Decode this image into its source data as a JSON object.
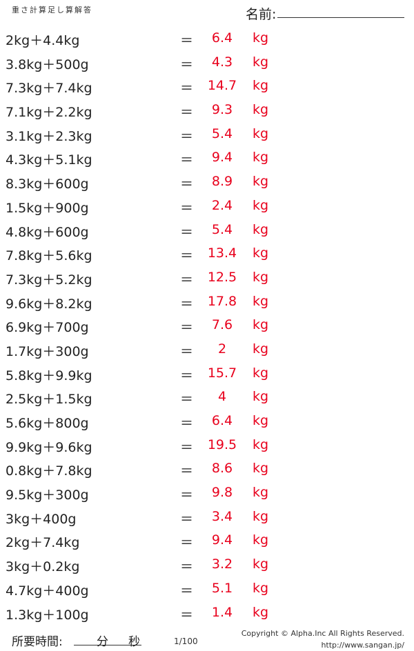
{
  "header": {
    "title": "重さ計算足し算解答",
    "name_label": "名前:"
  },
  "colors": {
    "answer": "#e8001c",
    "text": "#222222"
  },
  "equals": "＝",
  "rows": [
    {
      "problem": "2kg＋4.4kg",
      "answer": "6.4",
      "unit": "kg"
    },
    {
      "problem": "3.8kg＋500g",
      "answer": "4.3",
      "unit": "kg"
    },
    {
      "problem": "7.3kg＋7.4kg",
      "answer": "14.7",
      "unit": "kg"
    },
    {
      "problem": "7.1kg＋2.2kg",
      "answer": "9.3",
      "unit": "kg"
    },
    {
      "problem": "3.1kg＋2.3kg",
      "answer": "5.4",
      "unit": "kg"
    },
    {
      "problem": "4.3kg＋5.1kg",
      "answer": "9.4",
      "unit": "kg"
    },
    {
      "problem": "8.3kg＋600g",
      "answer": "8.9",
      "unit": "kg"
    },
    {
      "problem": "1.5kg＋900g",
      "answer": "2.4",
      "unit": "kg"
    },
    {
      "problem": "4.8kg＋600g",
      "answer": "5.4",
      "unit": "kg"
    },
    {
      "problem": "7.8kg＋5.6kg",
      "answer": "13.4",
      "unit": "kg"
    },
    {
      "problem": "7.3kg＋5.2kg",
      "answer": "12.5",
      "unit": "kg"
    },
    {
      "problem": "9.6kg＋8.2kg",
      "answer": "17.8",
      "unit": "kg"
    },
    {
      "problem": "6.9kg＋700g",
      "answer": "7.6",
      "unit": "kg"
    },
    {
      "problem": "1.7kg＋300g",
      "answer": "2",
      "unit": "kg"
    },
    {
      "problem": "5.8kg＋9.9kg",
      "answer": "15.7",
      "unit": "kg"
    },
    {
      "problem": "2.5kg＋1.5kg",
      "answer": "4",
      "unit": "kg"
    },
    {
      "problem": "5.6kg＋800g",
      "answer": "6.4",
      "unit": "kg"
    },
    {
      "problem": "9.9kg＋9.6kg",
      "answer": "19.5",
      "unit": "kg"
    },
    {
      "problem": "0.8kg＋7.8kg",
      "answer": "8.6",
      "unit": "kg"
    },
    {
      "problem": "9.5kg＋300g",
      "answer": "9.8",
      "unit": "kg"
    },
    {
      "problem": "3kg＋400g",
      "answer": "3.4",
      "unit": "kg"
    },
    {
      "problem": "2kg＋7.4kg",
      "answer": "9.4",
      "unit": "kg"
    },
    {
      "problem": "3kg＋0.2kg",
      "answer": "3.2",
      "unit": "kg"
    },
    {
      "problem": "4.7kg＋400g",
      "answer": "5.1",
      "unit": "kg"
    },
    {
      "problem": "1.3kg＋100g",
      "answer": "1.4",
      "unit": "kg"
    }
  ],
  "footer": {
    "time_label": "所要時間:",
    "minutes_label": "分",
    "seconds_label": "秒",
    "page": "1/100",
    "copyright": "Copyright © Alpha.Inc All Rights Reserved.",
    "url": "http://www.sangan.jp/"
  }
}
